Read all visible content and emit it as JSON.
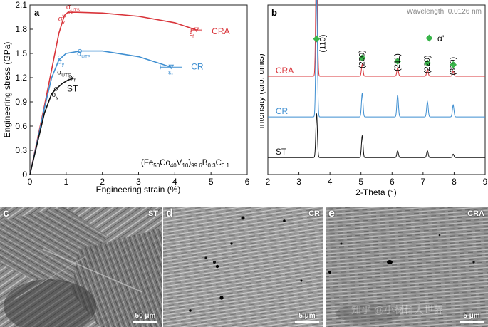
{
  "panel_a": {
    "letter": "a",
    "formula": {
      "base": "(Fe",
      "s1": "50",
      "t2": "Co",
      "s2": "40",
      "t3": "V",
      "s3": "10",
      "t4": ")",
      "s4": "99.6",
      "t5": "B",
      "s5": "0.3",
      "t6": "C",
      "s6": "0.1"
    },
    "markers": {
      "sigma": "σ",
      "uts": "UTS",
      "y": "y",
      "epsilon": "ε",
      "f": "f"
    }
  },
  "panel_b": {
    "letter": "b",
    "wavelength": "Wavelength:  0.0126 nm",
    "legend_symbol": "α'"
  },
  "colors": {
    "CRA": "#d9343a",
    "CR": "#3f8fd1",
    "ST": "#111111",
    "marker": "#39b54a"
  },
  "chart_data": [
    {
      "type": "line",
      "xlabel": "Engineering strain (%)",
      "ylabel": "Engineering stress (GPa)",
      "xlim": [
        0,
        6
      ],
      "ylim": [
        0,
        2.1
      ],
      "xticks": [
        "0",
        "1",
        "2",
        "3",
        "4",
        "5",
        "6"
      ],
      "yticks": [
        "0",
        "0.3",
        "0.6",
        "0.9",
        "1.2",
        "1.5",
        "1.8",
        "2.1"
      ],
      "series": [
        {
          "name": "CRA",
          "x": [
            0,
            0.2,
            0.4,
            0.6,
            0.8,
            0.95,
            1.05,
            1.3,
            2.0,
            3.0,
            4.0,
            4.6
          ],
          "y": [
            0,
            0.42,
            0.85,
            1.3,
            1.75,
            1.97,
            2.01,
            2.01,
            2.0,
            1.96,
            1.88,
            1.79
          ],
          "label": "CRA"
        },
        {
          "name": "CR",
          "x": [
            0,
            0.2,
            0.4,
            0.6,
            0.8,
            1.0,
            1.4,
            2.0,
            3.0,
            3.9
          ],
          "y": [
            0,
            0.4,
            0.82,
            1.2,
            1.42,
            1.5,
            1.53,
            1.53,
            1.46,
            1.33
          ],
          "label": "CR"
        },
        {
          "name": "ST",
          "x": [
            0,
            0.2,
            0.4,
            0.6,
            0.72,
            0.9,
            1.05,
            1.18
          ],
          "y": [
            0,
            0.38,
            0.76,
            1.0,
            1.06,
            1.13,
            1.17,
            1.19
          ],
          "label": "ST"
        }
      ],
      "error_bars": [
        {
          "series": "CRA",
          "x": 4.6,
          "y": 1.79,
          "xerr": 0.15
        },
        {
          "series": "CR",
          "x": 3.9,
          "y": 1.33,
          "xerr": 0.3
        }
      ],
      "grid": false
    },
    {
      "type": "line",
      "xlabel": "2-Theta (°)",
      "ylabel": "Intensity (arb. units)",
      "xlim": [
        2,
        9
      ],
      "xticks": [
        "2",
        "3",
        "4",
        "5",
        "6",
        "7",
        "8",
        "9"
      ],
      "peaks": [
        {
          "hkl": "(110)",
          "two_theta": 3.57
        },
        {
          "hkl": "(200)",
          "two_theta": 5.04
        },
        {
          "hkl": "(211)",
          "two_theta": 6.18
        },
        {
          "hkl": "(220)",
          "two_theta": 7.14
        },
        {
          "hkl": "(310)",
          "two_theta": 7.97
        }
      ],
      "series": [
        {
          "name": "CRA",
          "offset": 0.58,
          "peak_heights": [
            0.88,
            0.07,
            0.05,
            0.04,
            0.03
          ]
        },
        {
          "name": "CR",
          "offset": 0.34,
          "peak_heights": [
            0.75,
            0.14,
            0.13,
            0.09,
            0.07
          ]
        },
        {
          "name": "ST",
          "offset": 0.1,
          "peak_heights": [
            0.26,
            0.13,
            0.04,
            0.04,
            0.02
          ]
        }
      ],
      "grid": false
    }
  ],
  "micrographs": [
    {
      "letter": "c",
      "name": "ST",
      "scale": "50 μm"
    },
    {
      "letter": "d",
      "name": "CR",
      "scale": "5 μm"
    },
    {
      "letter": "e",
      "name": "CRA",
      "scale": "5 μm"
    }
  ],
  "watermark": "知乎 @小材料大世界"
}
